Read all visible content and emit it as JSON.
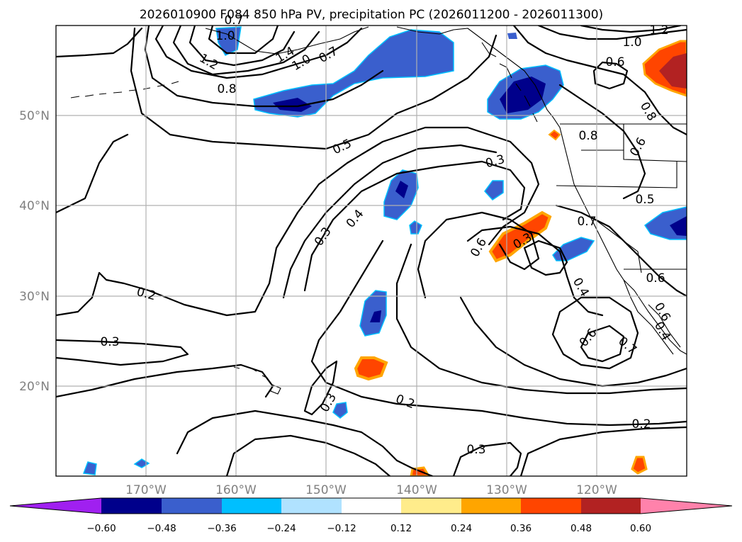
{
  "title": "2026010900 F084 850 hPa PV, precipitation PC (2026011200 - 2026011300)",
  "map": {
    "lon_labels": [
      "170°W",
      "160°W",
      "150°W",
      "140°W",
      "130°W",
      "120°W"
    ],
    "lat_labels": [
      "50°N",
      "40°N",
      "30°N",
      "20°N"
    ],
    "contour_labels": [
      "1.2",
      "1.0",
      "0.7",
      "1.4",
      "1.0",
      "0.7",
      "0.8",
      "0.5",
      "0.3",
      "0.4",
      "0.3",
      "0.6",
      "0.3",
      "0.4",
      "0.6",
      "0.7",
      "0.6",
      "0.7",
      "0.5",
      "0.6",
      "0.8",
      "0.6",
      "0.2",
      "0.3",
      "0.3",
      "0.2",
      "0.3",
      "0.2",
      "0.6",
      "0.4",
      "1.2",
      "1.0",
      "0.8"
    ]
  },
  "colorbar": {
    "ticks": [
      "−0.60",
      "−0.48",
      "−0.36",
      "−0.24",
      "−0.12",
      "0.12",
      "0.24",
      "0.36",
      "0.48",
      "0.60"
    ],
    "colors": [
      "#a020f0",
      "#00008b",
      "#3a5fcd",
      "#00bfff",
      "#b0e2ff",
      "#ffffff",
      "#ffec8b",
      "#ffa500",
      "#ff4500",
      "#b22222",
      "#ff82ab"
    ]
  }
}
